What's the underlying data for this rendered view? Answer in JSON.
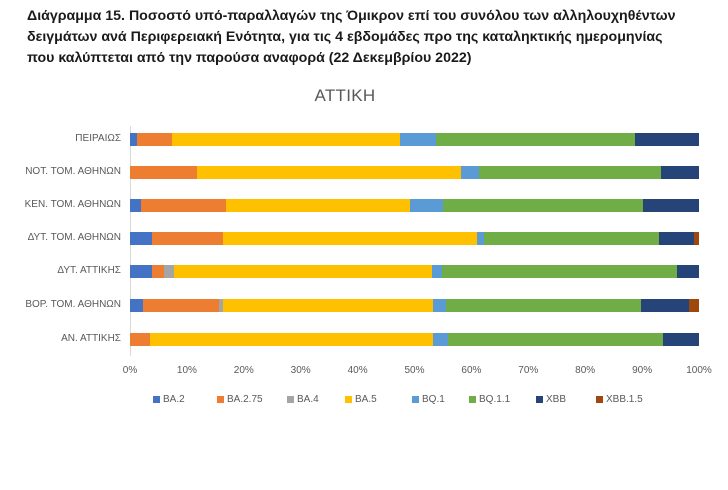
{
  "caption": {
    "line1": "Διάγραμμα 15. Ποσοστό υπό-παραλλαγών της Όμικρον επί του συνόλου των αλληλουχηθέντων",
    "line2": "δειγμάτων ανά Περιφερειακή Ενότητα, για τις 4 εβδομάδες προ της καταληκτικής ημερομηνίας",
    "line3": "που καλύπτεται από την παρούσα αναφορά (22 Δεκεμβρίου 2022)"
  },
  "chart_data": {
    "type": "bar",
    "orientation": "horizontal",
    "stacked": "100%",
    "title": "ΑΤΤΙΚΗ",
    "xlabel": "",
    "ylabel": "",
    "xlim": [
      0,
      100
    ],
    "x_ticks": [
      "0%",
      "10%",
      "20%",
      "30%",
      "40%",
      "50%",
      "60%",
      "70%",
      "80%",
      "90%",
      "100%"
    ],
    "grid": false,
    "legend_position": "bottom",
    "categories": [
      "ΠΕΙΡΑΙΩΣ",
      "ΝΟΤ. ΤΟΜ. ΑΘΗΝΩΝ",
      "ΚΕΝ. ΤΟΜ. ΑΘΗΝΩΝ",
      "ΔΥΤ. ΤΟΜ. ΑΘΗΝΩΝ",
      "ΔΥΤ. ΑΤΤΙΚΗΣ",
      "ΒΟΡ. ΤΟΜ. ΑΘΗΝΩΝ",
      "ΑΝ. ΑΤΤΙΚΗΣ"
    ],
    "series": [
      {
        "name": "BA.2",
        "color": "#4472C4",
        "values": [
          1.2,
          0.0,
          2.0,
          3.8,
          3.8,
          2.2,
          0.0
        ]
      },
      {
        "name": "BA.2.75",
        "color": "#ED7D31",
        "values": [
          6.2,
          11.7,
          14.9,
          12.5,
          2.1,
          13.5,
          3.6
        ]
      },
      {
        "name": "BA.4",
        "color": "#A5A5A5",
        "values": [
          0.0,
          0.0,
          0.0,
          0.0,
          1.9,
          0.6,
          0.0
        ]
      },
      {
        "name": "BA.5",
        "color": "#FFC000",
        "values": [
          40.1,
          46.4,
          32.4,
          44.7,
          45.2,
          37.0,
          49.6
        ]
      },
      {
        "name": "BQ.1",
        "color": "#5B9BD5",
        "values": [
          6.3,
          3.3,
          5.8,
          1.2,
          1.9,
          2.3,
          2.7
        ]
      },
      {
        "name": "BQ.1.1",
        "color": "#70AD47",
        "values": [
          35.0,
          32.0,
          35.0,
          30.7,
          41.2,
          34.3,
          37.7
        ]
      },
      {
        "name": "XBB",
        "color": "#264478",
        "values": [
          11.2,
          6.6,
          9.9,
          6.2,
          3.9,
          8.3,
          6.4
        ]
      },
      {
        "name": "XBB.1.5",
        "color": "#9E480E",
        "values": [
          0.0,
          0.0,
          0.0,
          0.9,
          0.0,
          1.8,
          0.0
        ]
      }
    ]
  }
}
